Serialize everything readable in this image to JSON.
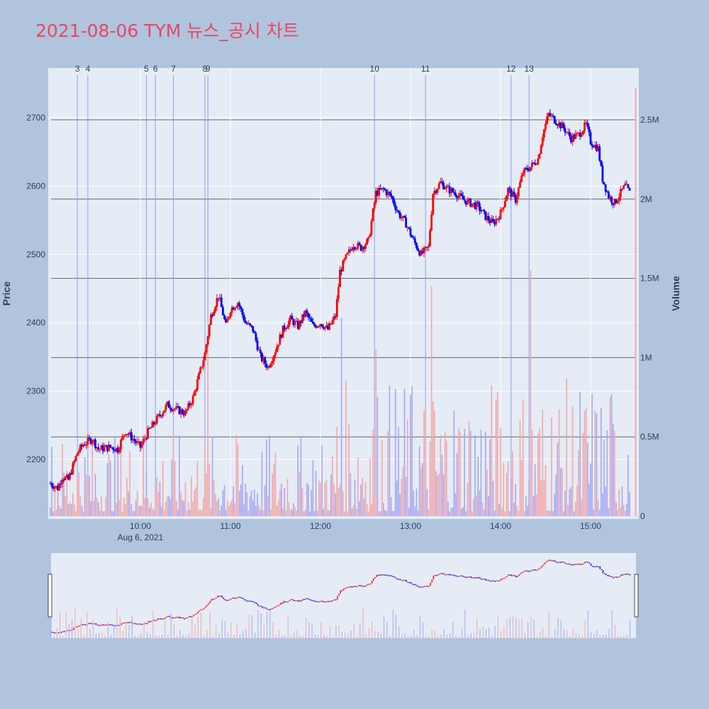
{
  "title": "2021-08-06 TYM 뉴스_공시 차트",
  "colors": {
    "up": "#ff0000",
    "down": "#0000ff",
    "vol_up": "#f4a6a6",
    "vol_down": "#a6a6f4",
    "news": "#8a9ef0",
    "title": "#e8475f"
  },
  "chart_data": {
    "type": "candlestick",
    "xaxis": {
      "ticks": [
        "10:00",
        "11:00",
        "12:00",
        "13:00",
        "14:00",
        "15:00"
      ],
      "date_label": "Aug 6, 2021",
      "range": [
        "09:00",
        "15:30"
      ]
    },
    "yaxis_price": {
      "title": "Price",
      "ticks": [
        2200,
        2300,
        2400,
        2500,
        2600,
        2700
      ],
      "range": [
        2117,
        2758
      ]
    },
    "yaxis_volume": {
      "title": "Volume",
      "ticks": [
        "0",
        "0.5M",
        "1M",
        "1.5M",
        "2M",
        "2.5M"
      ],
      "tick_values": [
        0,
        500000,
        1000000,
        1500000,
        2000000,
        2500000
      ],
      "range": [
        0,
        2800000
      ]
    },
    "news_markers": [
      {
        "label": "3",
        "time": "09:18"
      },
      {
        "label": "4",
        "time": "09:25"
      },
      {
        "label": "5",
        "time": "10:04"
      },
      {
        "label": "6",
        "time": "10:10"
      },
      {
        "label": "7",
        "time": "10:22"
      },
      {
        "label": "8",
        "time": "10:43"
      },
      {
        "label": "9",
        "time": "10:45"
      },
      {
        "label": "10",
        "time": "12:36"
      },
      {
        "label": "11",
        "time": "13:10"
      },
      {
        "label": "12",
        "time": "14:07"
      },
      {
        "label": "13",
        "time": "14:19"
      }
    ],
    "price_path": [
      [
        "09:00",
        2165
      ],
      [
        "09:05",
        2158
      ],
      [
        "09:08",
        2175
      ],
      [
        "09:12",
        2170
      ],
      [
        "09:18",
        2210
      ],
      [
        "09:22",
        2222
      ],
      [
        "09:28",
        2230
      ],
      [
        "09:32",
        2215
      ],
      [
        "09:40",
        2218
      ],
      [
        "09:45",
        2215
      ],
      [
        "09:50",
        2242
      ],
      [
        "09:55",
        2230
      ],
      [
        "10:00",
        2218
      ],
      [
        "10:05",
        2240
      ],
      [
        "10:12",
        2262
      ],
      [
        "10:18",
        2280
      ],
      [
        "10:25",
        2272
      ],
      [
        "10:30",
        2268
      ],
      [
        "10:35",
        2290
      ],
      [
        "10:40",
        2330
      ],
      [
        "10:43",
        2355
      ],
      [
        "10:47",
        2410
      ],
      [
        "10:52",
        2440
      ],
      [
        "10:57",
        2395
      ],
      [
        "11:00",
        2420
      ],
      [
        "11:05",
        2430
      ],
      [
        "11:10",
        2400
      ],
      [
        "11:15",
        2390
      ],
      [
        "11:20",
        2350
      ],
      [
        "11:25",
        2335
      ],
      [
        "11:30",
        2360
      ],
      [
        "11:35",
        2390
      ],
      [
        "11:40",
        2405
      ],
      [
        "11:45",
        2395
      ],
      [
        "11:50",
        2415
      ],
      [
        "11:55",
        2395
      ],
      [
        "12:00",
        2400
      ],
      [
        "12:05",
        2390
      ],
      [
        "12:10",
        2410
      ],
      [
        "12:13",
        2475
      ],
      [
        "12:17",
        2495
      ],
      [
        "12:22",
        2515
      ],
      [
        "12:27",
        2510
      ],
      [
        "12:32",
        2520
      ],
      [
        "12:37",
        2590
      ],
      [
        "12:42",
        2595
      ],
      [
        "12:47",
        2585
      ],
      [
        "12:52",
        2560
      ],
      [
        "12:57",
        2545
      ],
      [
        "13:02",
        2520
      ],
      [
        "13:07",
        2500
      ],
      [
        "13:12",
        2510
      ],
      [
        "13:15",
        2590
      ],
      [
        "13:20",
        2605
      ],
      [
        "13:25",
        2595
      ],
      [
        "13:30",
        2590
      ],
      [
        "13:35",
        2580
      ],
      [
        "13:40",
        2575
      ],
      [
        "13:45",
        2570
      ],
      [
        "13:50",
        2555
      ],
      [
        "13:55",
        2545
      ],
      [
        "14:00",
        2560
      ],
      [
        "14:05",
        2595
      ],
      [
        "14:10",
        2580
      ],
      [
        "14:15",
        2620
      ],
      [
        "14:20",
        2628
      ],
      [
        "14:25",
        2640
      ],
      [
        "14:28",
        2675
      ],
      [
        "14:32",
        2705
      ],
      [
        "14:37",
        2695
      ],
      [
        "14:42",
        2685
      ],
      [
        "14:47",
        2670
      ],
      [
        "14:52",
        2675
      ],
      [
        "14:57",
        2690
      ],
      [
        "15:00",
        2665
      ],
      [
        "15:05",
        2655
      ],
      [
        "15:08",
        2610
      ],
      [
        "15:12",
        2585
      ],
      [
        "15:16",
        2575
      ],
      [
        "15:20",
        2590
      ],
      [
        "15:23",
        2600
      ],
      [
        "15:26",
        2590
      ]
    ],
    "volume_up_spikes": [
      [
        "10:45",
        1100000
      ],
      [
        "12:14",
        1250000
      ],
      [
        "12:37",
        1050000
      ],
      [
        "13:14",
        1450000
      ],
      [
        "14:20",
        1550000
      ],
      [
        "15:30",
        2700000
      ]
    ]
  }
}
